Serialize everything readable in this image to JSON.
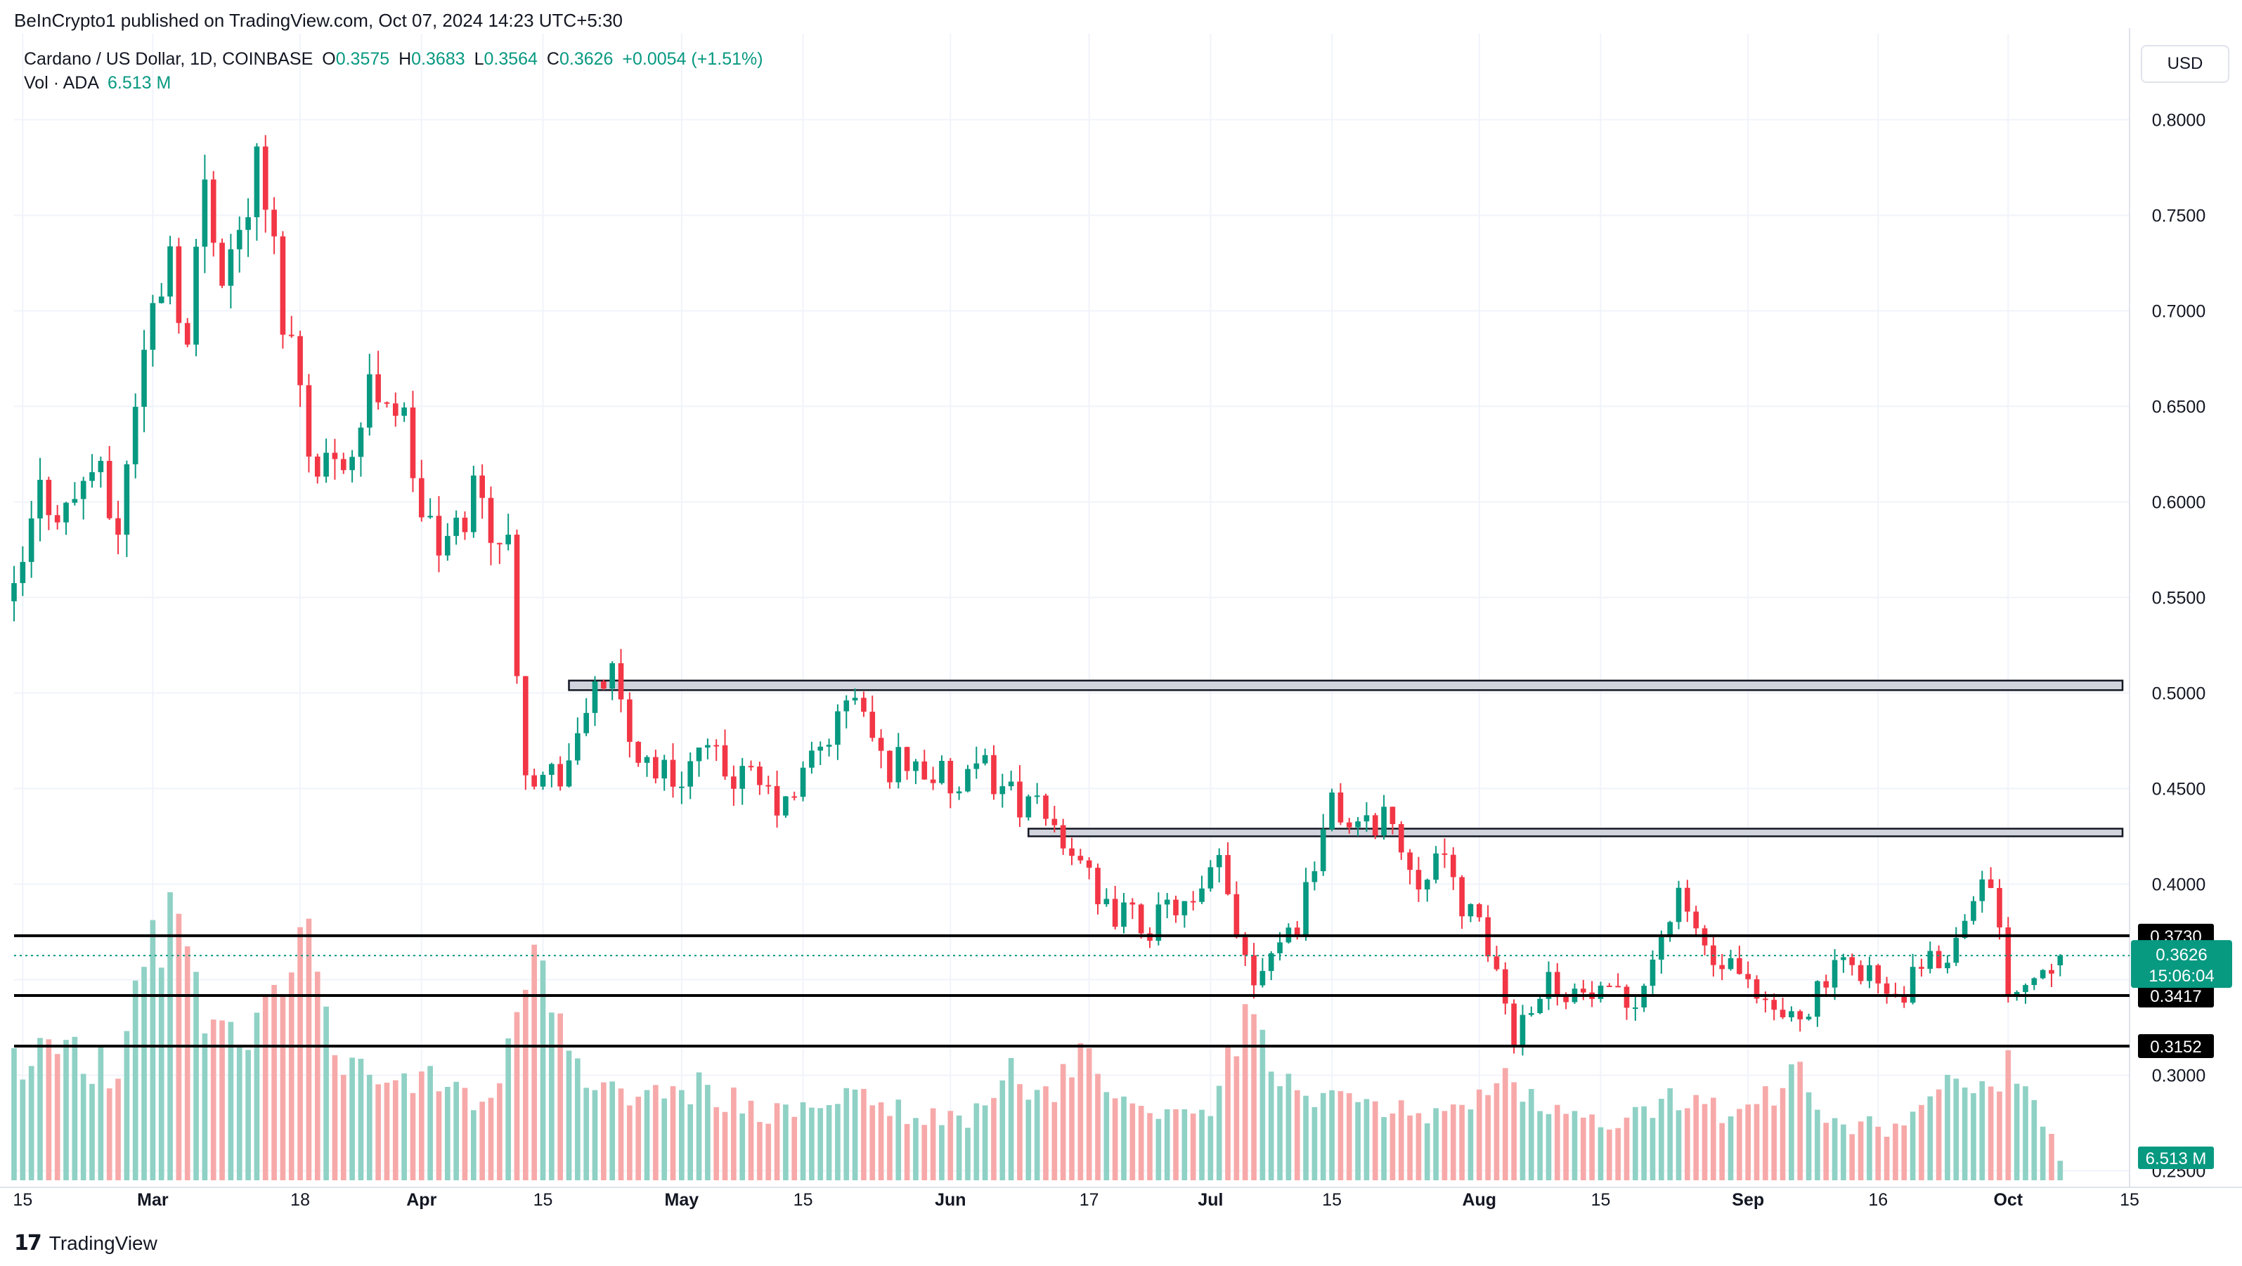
{
  "header": {
    "published": "BeInCrypto1 published on TradingView.com, Oct 07, 2024 14:23 UTC+5:30",
    "symbol": "Cardano / US Dollar, 1D, COINBASE",
    "open_label": "O",
    "open": "0.3575",
    "high_label": "H",
    "high": "0.3683",
    "low_label": "L",
    "low": "0.3564",
    "close_label": "C",
    "close": "0.3626",
    "change": "+0.0054 (+1.51%)",
    "vol_label": "Vol · ADA",
    "vol_value": "6.513 M"
  },
  "currency_button": "USD",
  "footer": {
    "brand": "TradingView",
    "logo_icon": "tradingview-logo-icon"
  },
  "colors": {
    "up": "#089981",
    "down": "#F23645",
    "up_vol": "#8FD1C5",
    "down_vol": "#F7A9A9",
    "grid": "#F0F3FA"
  },
  "chart_data": {
    "type": "candlestick",
    "title": "Cardano / US Dollar, 1D, COINBASE",
    "y_axis": {
      "ticks": [
        "0.2500",
        "0.3000",
        "0.3500",
        "0.4000",
        "0.4500",
        "0.5000",
        "0.5500",
        "0.6000",
        "0.6500",
        "0.7000",
        "0.7500",
        "0.8000"
      ],
      "range": [
        0.245,
        0.845
      ],
      "position": "right"
    },
    "x_axis": {
      "ticks": [
        {
          "label": "15",
          "date": "2024-02-15"
        },
        {
          "label": "Mar",
          "date": "2024-03-01"
        },
        {
          "label": "18",
          "date": "2024-03-18"
        },
        {
          "label": "Apr",
          "date": "2024-04-01"
        },
        {
          "label": "15",
          "date": "2024-04-15"
        },
        {
          "label": "May",
          "date": "2024-05-01"
        },
        {
          "label": "15",
          "date": "2024-05-15"
        },
        {
          "label": "Jun",
          "date": "2024-06-01"
        },
        {
          "label": "17",
          "date": "2024-06-17"
        },
        {
          "label": "Jul",
          "date": "2024-07-01"
        },
        {
          "label": "15",
          "date": "2024-07-15"
        },
        {
          "label": "Aug",
          "date": "2024-08-01"
        },
        {
          "label": "15",
          "date": "2024-08-15"
        },
        {
          "label": "Sep",
          "date": "2024-09-01"
        },
        {
          "label": "16",
          "date": "2024-09-16"
        },
        {
          "label": "Oct",
          "date": "2024-10-01"
        },
        {
          "label": "15",
          "date": "2024-10-15"
        }
      ],
      "range": [
        "2024-02-14",
        "2024-10-15"
      ]
    },
    "price_points": [
      [
        "2024-02-14",
        0.548
      ],
      [
        "2024-02-17",
        0.605
      ],
      [
        "2024-02-20",
        0.595
      ],
      [
        "2024-02-23",
        0.62
      ],
      [
        "2024-02-26",
        0.585
      ],
      [
        "2024-02-28",
        0.655
      ],
      [
        "2024-03-01",
        0.7
      ],
      [
        "2024-03-03",
        0.735
      ],
      [
        "2024-03-05",
        0.68
      ],
      [
        "2024-03-07",
        0.77
      ],
      [
        "2024-03-09",
        0.725
      ],
      [
        "2024-03-11",
        0.74
      ],
      [
        "2024-03-13",
        0.775
      ],
      [
        "2024-03-15",
        0.73
      ],
      [
        "2024-03-16",
        0.7
      ],
      [
        "2024-03-18",
        0.665
      ],
      [
        "2024-03-20",
        0.61
      ],
      [
        "2024-03-22",
        0.63
      ],
      [
        "2024-03-24",
        0.625
      ],
      [
        "2024-03-26",
        0.658
      ],
      [
        "2024-03-28",
        0.66
      ],
      [
        "2024-03-30",
        0.64
      ],
      [
        "2024-04-01",
        0.595
      ],
      [
        "2024-04-03",
        0.575
      ],
      [
        "2024-04-05",
        0.583
      ],
      [
        "2024-04-07",
        0.608
      ],
      [
        "2024-04-09",
        0.59
      ],
      [
        "2024-04-11",
        0.575
      ],
      [
        "2024-04-13",
        0.465
      ],
      [
        "2024-04-15",
        0.455
      ],
      [
        "2024-04-17",
        0.46
      ],
      [
        "2024-04-19",
        0.47
      ],
      [
        "2024-04-21",
        0.51
      ],
      [
        "2024-04-23",
        0.505
      ],
      [
        "2024-04-25",
        0.475
      ],
      [
        "2024-04-27",
        0.465
      ],
      [
        "2024-04-30",
        0.455
      ],
      [
        "2024-05-03",
        0.468
      ],
      [
        "2024-05-06",
        0.46
      ],
      [
        "2024-05-10",
        0.45
      ],
      [
        "2024-05-13",
        0.438
      ],
      [
        "2024-05-16",
        0.465
      ],
      [
        "2024-05-19",
        0.485
      ],
      [
        "2024-05-21",
        0.5
      ],
      [
        "2024-05-24",
        0.463
      ],
      [
        "2024-05-27",
        0.465
      ],
      [
        "2024-05-30",
        0.458
      ],
      [
        "2024-06-02",
        0.447
      ],
      [
        "2024-06-05",
        0.46
      ],
      [
        "2024-06-07",
        0.452
      ],
      [
        "2024-06-10",
        0.44
      ],
      [
        "2024-06-13",
        0.43
      ],
      [
        "2024-06-16",
        0.415
      ],
      [
        "2024-06-18",
        0.385
      ],
      [
        "2024-06-21",
        0.385
      ],
      [
        "2024-06-24",
        0.378
      ],
      [
        "2024-06-27",
        0.39
      ],
      [
        "2024-06-29",
        0.385
      ],
      [
        "2024-07-02",
        0.41
      ],
      [
        "2024-07-04",
        0.378
      ],
      [
        "2024-07-06",
        0.352
      ],
      [
        "2024-07-08",
        0.368
      ],
      [
        "2024-07-11",
        0.38
      ],
      [
        "2024-07-13",
        0.415
      ],
      [
        "2024-07-15",
        0.44
      ],
      [
        "2024-07-17",
        0.433
      ],
      [
        "2024-07-19",
        0.428
      ],
      [
        "2024-07-21",
        0.44
      ],
      [
        "2024-07-23",
        0.418
      ],
      [
        "2024-07-25",
        0.405
      ],
      [
        "2024-07-27",
        0.415
      ],
      [
        "2024-07-29",
        0.4
      ],
      [
        "2024-08-01",
        0.375
      ],
      [
        "2024-08-03",
        0.355
      ],
      [
        "2024-08-05",
        0.32
      ],
      [
        "2024-08-07",
        0.34
      ],
      [
        "2024-08-09",
        0.35
      ],
      [
        "2024-08-12",
        0.343
      ],
      [
        "2024-08-15",
        0.34
      ],
      [
        "2024-08-18",
        0.338
      ],
      [
        "2024-08-20",
        0.348
      ],
      [
        "2024-08-22",
        0.375
      ],
      [
        "2024-08-24",
        0.39
      ],
      [
        "2024-08-26",
        0.377
      ],
      [
        "2024-08-28",
        0.357
      ],
      [
        "2024-08-30",
        0.355
      ],
      [
        "2024-09-01",
        0.343
      ],
      [
        "2024-09-03",
        0.333
      ],
      [
        "2024-09-06",
        0.33
      ],
      [
        "2024-09-08",
        0.338
      ],
      [
        "2024-09-10",
        0.35
      ],
      [
        "2024-09-13",
        0.358
      ],
      [
        "2024-09-15",
        0.356
      ],
      [
        "2024-09-17",
        0.338
      ],
      [
        "2024-09-19",
        0.343
      ],
      [
        "2024-09-21",
        0.355
      ],
      [
        "2024-09-23",
        0.36
      ],
      [
        "2024-09-25",
        0.37
      ],
      [
        "2024-09-27",
        0.4
      ],
      [
        "2024-09-29",
        0.395
      ],
      [
        "2024-10-01",
        0.348
      ],
      [
        "2024-10-03",
        0.35
      ],
      [
        "2024-10-05",
        0.357
      ],
      [
        "2024-10-07",
        0.3626
      ]
    ],
    "volume_points": [
      [
        "2024-02-14",
        0.45
      ],
      [
        "2024-02-20",
        0.48
      ],
      [
        "2024-02-26",
        0.4
      ],
      [
        "2024-03-01",
        0.95
      ],
      [
        "2024-03-04",
        1.0
      ],
      [
        "2024-03-08",
        0.55
      ],
      [
        "2024-03-12",
        0.48
      ],
      [
        "2024-03-15",
        0.78
      ],
      [
        "2024-03-19",
        0.85
      ],
      [
        "2024-03-22",
        0.45
      ],
      [
        "2024-03-27",
        0.35
      ],
      [
        "2024-04-01",
        0.38
      ],
      [
        "2024-04-06",
        0.3
      ],
      [
        "2024-04-10",
        0.33
      ],
      [
        "2024-04-13",
        0.78
      ],
      [
        "2024-04-16",
        0.68
      ],
      [
        "2024-04-20",
        0.38
      ],
      [
        "2024-04-27",
        0.3
      ],
      [
        "2024-05-03",
        0.35
      ],
      [
        "2024-05-10",
        0.25
      ],
      [
        "2024-05-17",
        0.25
      ],
      [
        "2024-05-21",
        0.33
      ],
      [
        "2024-05-28",
        0.24
      ],
      [
        "2024-06-03",
        0.22
      ],
      [
        "2024-06-07",
        0.42
      ],
      [
        "2024-06-12",
        0.3
      ],
      [
        "2024-06-17",
        0.48
      ],
      [
        "2024-06-20",
        0.35
      ],
      [
        "2024-06-26",
        0.23
      ],
      [
        "2024-07-01",
        0.28
      ],
      [
        "2024-07-05",
        0.57
      ],
      [
        "2024-07-09",
        0.4
      ],
      [
        "2024-07-15",
        0.3
      ],
      [
        "2024-07-22",
        0.26
      ],
      [
        "2024-07-30",
        0.25
      ],
      [
        "2024-08-05",
        0.38
      ],
      [
        "2024-08-08",
        0.3
      ],
      [
        "2024-08-14",
        0.22
      ],
      [
        "2024-08-20",
        0.24
      ],
      [
        "2024-08-24",
        0.32
      ],
      [
        "2024-08-30",
        0.24
      ],
      [
        "2024-09-03",
        0.3
      ],
      [
        "2024-09-06",
        0.42
      ],
      [
        "2024-09-11",
        0.22
      ],
      [
        "2024-09-17",
        0.2
      ],
      [
        "2024-09-21",
        0.28
      ],
      [
        "2024-09-26",
        0.38
      ],
      [
        "2024-09-29",
        0.3
      ],
      [
        "2024-10-01",
        0.42
      ],
      [
        "2024-10-04",
        0.3
      ],
      [
        "2024-10-07",
        0.08
      ]
    ],
    "resistance_zones": [
      {
        "from": 0.5015,
        "to": 0.5065,
        "start": "2024-04-18"
      },
      {
        "from": 0.425,
        "to": 0.429,
        "start": "2024-06-10"
      }
    ],
    "support_lines": [
      {
        "value": 0.373,
        "label": "0.3730"
      },
      {
        "value": 0.3417,
        "label": "0.3417"
      },
      {
        "value": 0.3152,
        "label": "0.3152"
      }
    ],
    "last_price": {
      "value": 0.3626,
      "label": "0.3626",
      "countdown": "15:06:04"
    },
    "volume_label": "6.513 M"
  }
}
